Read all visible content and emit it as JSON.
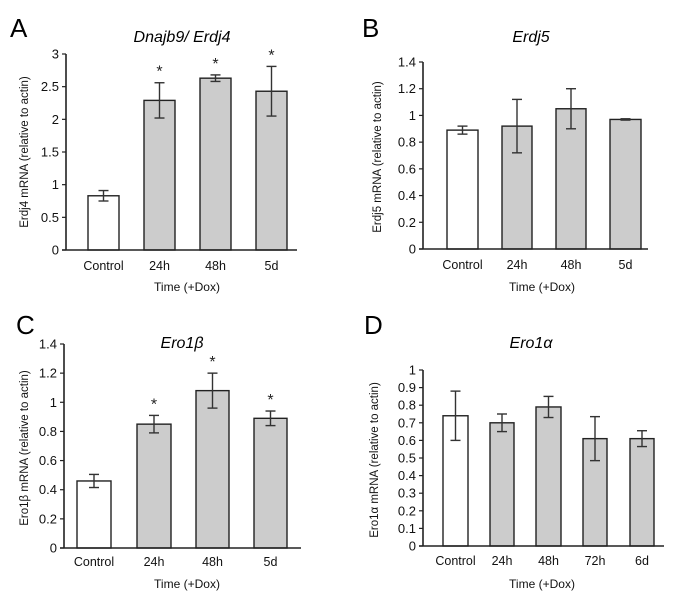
{
  "colors": {
    "control_fill": "#ffffff",
    "treated_fill": "#cccccc",
    "bar_stroke": "#222222",
    "axis": "#222222"
  },
  "chart_data": [
    {
      "panel": "A",
      "type": "bar",
      "title": "Dnajb9/ Erdj4",
      "xlabel": "Time (+Dox)",
      "ylabel": "Erdj4 mRNA (relative to actin)",
      "ylim": [
        0,
        3
      ],
      "yticks": [
        "0",
        "0.5",
        "1",
        "1.5",
        "2",
        "2.5",
        "3"
      ],
      "ytick_values": [
        0,
        0.5,
        1,
        1.5,
        2,
        2.5,
        3
      ],
      "categories": [
        "Control",
        "24h",
        "48h",
        "5d"
      ],
      "values": [
        0.83,
        2.29,
        2.63,
        2.43
      ],
      "errors": [
        0.08,
        0.27,
        0.05,
        0.38
      ],
      "significant": [
        false,
        true,
        true,
        true
      ],
      "significance_marker": "*",
      "grid": false
    },
    {
      "panel": "B",
      "type": "bar",
      "title": "Erdj5",
      "xlabel": "Time (+Dox)",
      "ylabel": "Erdj5 mRNA (relative to actin)",
      "ylim": [
        0,
        1.4
      ],
      "yticks": [
        "0",
        "0.2",
        "0.4",
        "0.6",
        "0.8",
        "1",
        "1.2",
        "1.4"
      ],
      "ytick_values": [
        0,
        0.2,
        0.4,
        0.6,
        0.8,
        1,
        1.2,
        1.4
      ],
      "categories": [
        "Control",
        "24h",
        "48h",
        "5d"
      ],
      "values": [
        0.89,
        0.92,
        1.05,
        0.97
      ],
      "errors": [
        0.03,
        0.2,
        0.15,
        0.005
      ],
      "significant": [
        false,
        false,
        false,
        false
      ],
      "significance_marker": "*",
      "grid": false
    },
    {
      "panel": "C",
      "type": "bar",
      "title": "Ero1β",
      "xlabel": "Time (+Dox)",
      "ylabel": "Ero1β mRNA (relative to actin)",
      "ylim": [
        0,
        1.4
      ],
      "yticks": [
        "0",
        "0.2",
        "0.4",
        "0.6",
        "0.8",
        "1",
        "1.2",
        "1.4"
      ],
      "ytick_values": [
        0,
        0.2,
        0.4,
        0.6,
        0.8,
        1,
        1.2,
        1.4
      ],
      "categories": [
        "Control",
        "24h",
        "48h",
        "5d"
      ],
      "values": [
        0.46,
        0.85,
        1.08,
        0.89
      ],
      "errors": [
        0.045,
        0.06,
        0.12,
        0.05
      ],
      "significant": [
        false,
        true,
        true,
        true
      ],
      "significance_marker": "*",
      "grid": false
    },
    {
      "panel": "D",
      "type": "bar",
      "title": "Ero1α",
      "xlabel": "Time (+Dox)",
      "ylabel": "Ero1α mRNA (relative to actin)",
      "ylim": [
        0,
        1
      ],
      "yticks": [
        "0",
        "0.1",
        "0.2",
        "0.3",
        "0.4",
        "0.5",
        "0.6",
        "0.7",
        "0.8",
        "0.9",
        "1"
      ],
      "ytick_values": [
        0,
        0.1,
        0.2,
        0.3,
        0.4,
        0.5,
        0.6,
        0.7,
        0.8,
        0.9,
        1
      ],
      "categories": [
        "Control",
        "24h",
        "48h",
        "72h",
        "6d"
      ],
      "values": [
        0.74,
        0.7,
        0.79,
        0.61,
        0.61
      ],
      "errors": [
        0.14,
        0.05,
        0.06,
        0.125,
        0.045
      ],
      "significant": [
        false,
        false,
        false,
        false,
        false
      ],
      "significance_marker": "*",
      "grid": false
    }
  ]
}
